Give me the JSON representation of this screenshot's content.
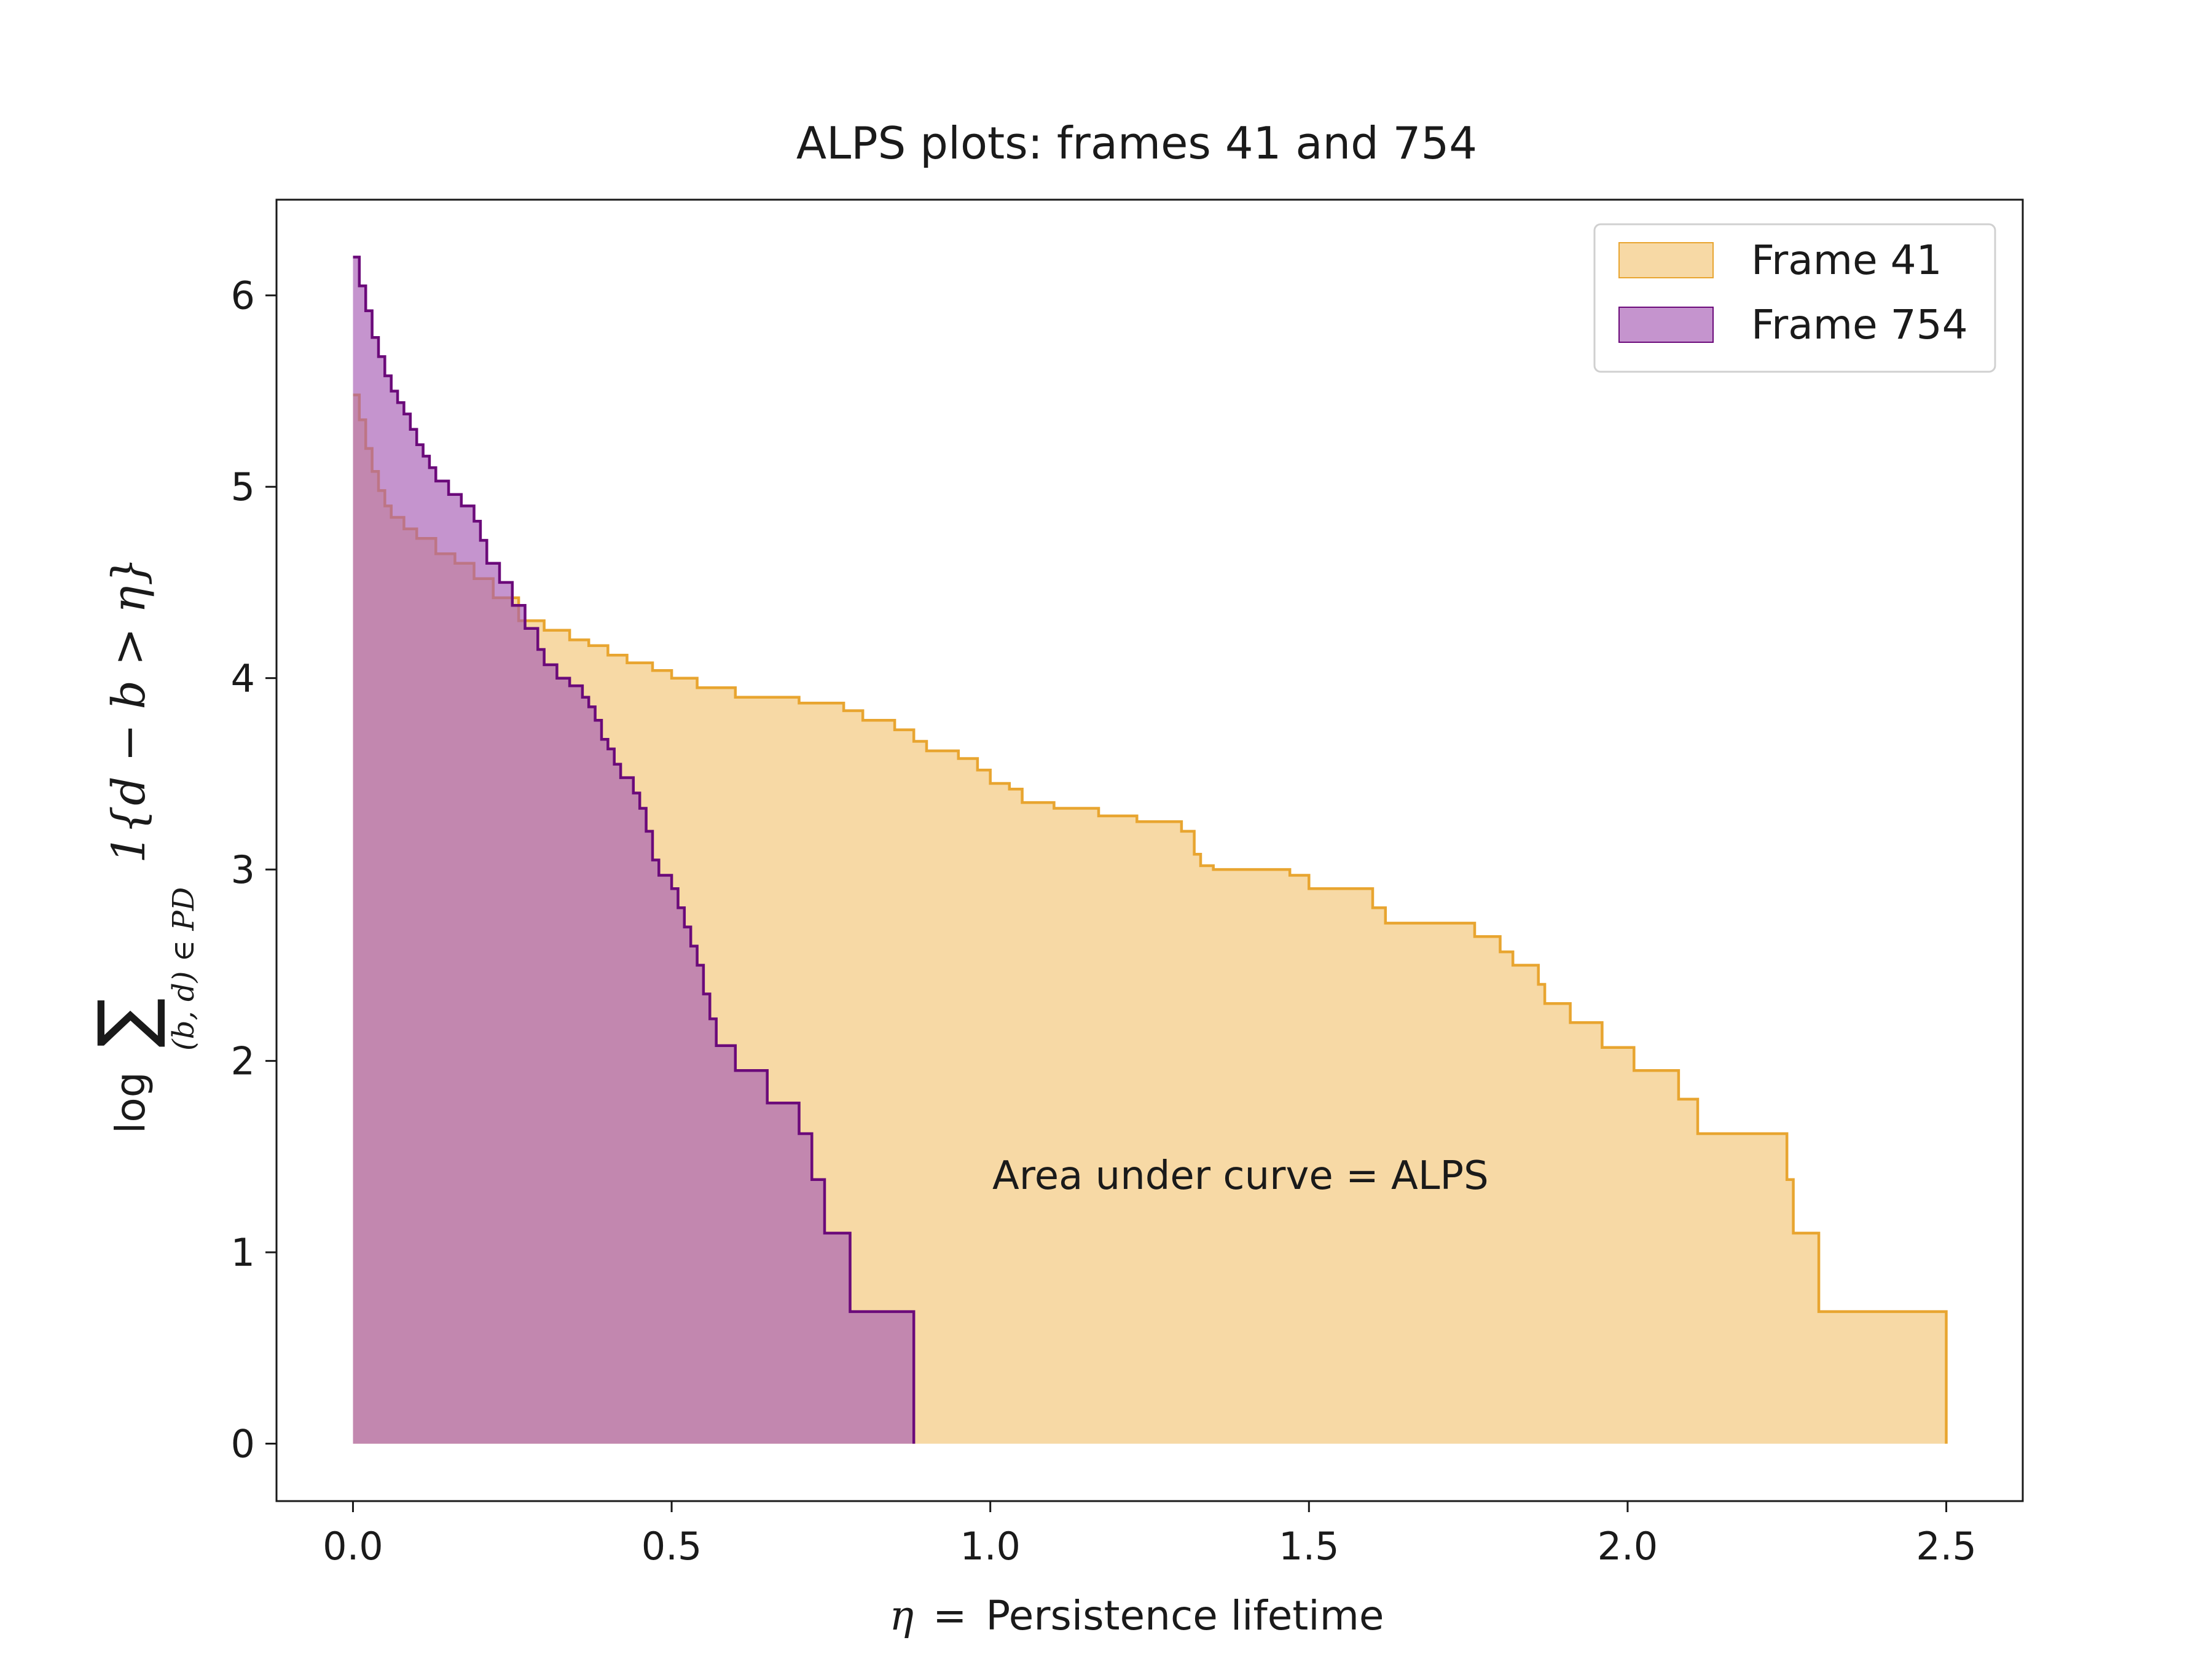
{
  "chart_data": {
    "type": "area",
    "title": "ALPS plots: frames 41 and 754",
    "xlabel_symbol": "η",
    "xlabel_equals": "=",
    "xlabel_text": "Persistence lifetime",
    "ylabel_log": "log",
    "ylabel_sum": "∑",
    "ylabel_subscript": "(b, d) ∈ PD",
    "ylabel_indicator": "1{d − b > η}",
    "annotation": "Area under curve = ALPS",
    "xlim": [
      -0.12,
      2.62
    ],
    "ylim": [
      -0.3,
      6.5
    ],
    "x_ticks": [
      0.0,
      0.5,
      1.0,
      1.5,
      2.0,
      2.5
    ],
    "x_tick_labels": [
      "0.0",
      "0.5",
      "1.0",
      "1.5",
      "2.0",
      "2.5"
    ],
    "y_ticks": [
      0,
      1,
      2,
      3,
      4,
      5,
      6
    ],
    "y_tick_labels": [
      "0",
      "1",
      "2",
      "3",
      "4",
      "5",
      "6"
    ],
    "grid": false,
    "legend_position": "top-right",
    "series": [
      {
        "name": "Frame 41",
        "line_color": "#e8a530",
        "fill_color": "#f7d9a5",
        "points": [
          [
            0.0,
            5.48
          ],
          [
            0.01,
            5.35
          ],
          [
            0.02,
            5.2
          ],
          [
            0.03,
            5.08
          ],
          [
            0.04,
            4.98
          ],
          [
            0.05,
            4.9
          ],
          [
            0.06,
            4.84
          ],
          [
            0.08,
            4.78
          ],
          [
            0.1,
            4.73
          ],
          [
            0.13,
            4.65
          ],
          [
            0.16,
            4.6
          ],
          [
            0.19,
            4.52
          ],
          [
            0.22,
            4.42
          ],
          [
            0.26,
            4.3
          ],
          [
            0.3,
            4.25
          ],
          [
            0.34,
            4.2
          ],
          [
            0.37,
            4.17
          ],
          [
            0.4,
            4.12
          ],
          [
            0.43,
            4.08
          ],
          [
            0.47,
            4.04
          ],
          [
            0.5,
            4.0
          ],
          [
            0.54,
            3.95
          ],
          [
            0.6,
            3.9
          ],
          [
            0.7,
            3.87
          ],
          [
            0.77,
            3.83
          ],
          [
            0.8,
            3.78
          ],
          [
            0.85,
            3.73
          ],
          [
            0.88,
            3.67
          ],
          [
            0.9,
            3.62
          ],
          [
            0.95,
            3.58
          ],
          [
            0.98,
            3.52
          ],
          [
            1.0,
            3.45
          ],
          [
            1.03,
            3.42
          ],
          [
            1.05,
            3.35
          ],
          [
            1.1,
            3.32
          ],
          [
            1.17,
            3.28
          ],
          [
            1.23,
            3.25
          ],
          [
            1.3,
            3.2
          ],
          [
            1.32,
            3.08
          ],
          [
            1.33,
            3.02
          ],
          [
            1.35,
            3.0
          ],
          [
            1.47,
            2.97
          ],
          [
            1.5,
            2.9
          ],
          [
            1.6,
            2.8
          ],
          [
            1.62,
            2.72
          ],
          [
            1.76,
            2.65
          ],
          [
            1.8,
            2.57
          ],
          [
            1.82,
            2.5
          ],
          [
            1.86,
            2.4
          ],
          [
            1.87,
            2.3
          ],
          [
            1.91,
            2.2
          ],
          [
            1.96,
            2.07
          ],
          [
            2.01,
            1.95
          ],
          [
            2.08,
            1.8
          ],
          [
            2.11,
            1.62
          ],
          [
            2.25,
            1.38
          ],
          [
            2.26,
            1.1
          ],
          [
            2.3,
            0.69
          ],
          [
            2.5,
            0.69
          ],
          [
            2.5,
            0.0
          ]
        ]
      },
      {
        "name": "Frame 754",
        "line_color": "#6b0a7a",
        "fill_color": "#a65ab3",
        "points": [
          [
            0.0,
            6.2
          ],
          [
            0.01,
            6.05
          ],
          [
            0.02,
            5.92
          ],
          [
            0.03,
            5.78
          ],
          [
            0.04,
            5.68
          ],
          [
            0.05,
            5.58
          ],
          [
            0.06,
            5.5
          ],
          [
            0.07,
            5.44
          ],
          [
            0.08,
            5.38
          ],
          [
            0.09,
            5.3
          ],
          [
            0.1,
            5.22
          ],
          [
            0.11,
            5.16
          ],
          [
            0.12,
            5.1
          ],
          [
            0.13,
            5.03
          ],
          [
            0.15,
            4.96
          ],
          [
            0.17,
            4.9
          ],
          [
            0.19,
            4.82
          ],
          [
            0.2,
            4.72
          ],
          [
            0.21,
            4.6
          ],
          [
            0.23,
            4.5
          ],
          [
            0.25,
            4.38
          ],
          [
            0.27,
            4.26
          ],
          [
            0.29,
            4.15
          ],
          [
            0.3,
            4.07
          ],
          [
            0.32,
            4.0
          ],
          [
            0.34,
            3.96
          ],
          [
            0.36,
            3.9
          ],
          [
            0.37,
            3.85
          ],
          [
            0.38,
            3.78
          ],
          [
            0.39,
            3.68
          ],
          [
            0.4,
            3.63
          ],
          [
            0.41,
            3.55
          ],
          [
            0.42,
            3.48
          ],
          [
            0.44,
            3.4
          ],
          [
            0.45,
            3.32
          ],
          [
            0.46,
            3.2
          ],
          [
            0.47,
            3.05
          ],
          [
            0.48,
            2.97
          ],
          [
            0.5,
            2.9
          ],
          [
            0.51,
            2.8
          ],
          [
            0.52,
            2.7
          ],
          [
            0.53,
            2.6
          ],
          [
            0.54,
            2.5
          ],
          [
            0.55,
            2.35
          ],
          [
            0.56,
            2.22
          ],
          [
            0.57,
            2.08
          ],
          [
            0.6,
            1.95
          ],
          [
            0.65,
            1.78
          ],
          [
            0.7,
            1.62
          ],
          [
            0.72,
            1.38
          ],
          [
            0.74,
            1.1
          ],
          [
            0.78,
            0.69
          ],
          [
            0.88,
            0.69
          ],
          [
            0.88,
            0.0
          ]
        ]
      }
    ]
  }
}
